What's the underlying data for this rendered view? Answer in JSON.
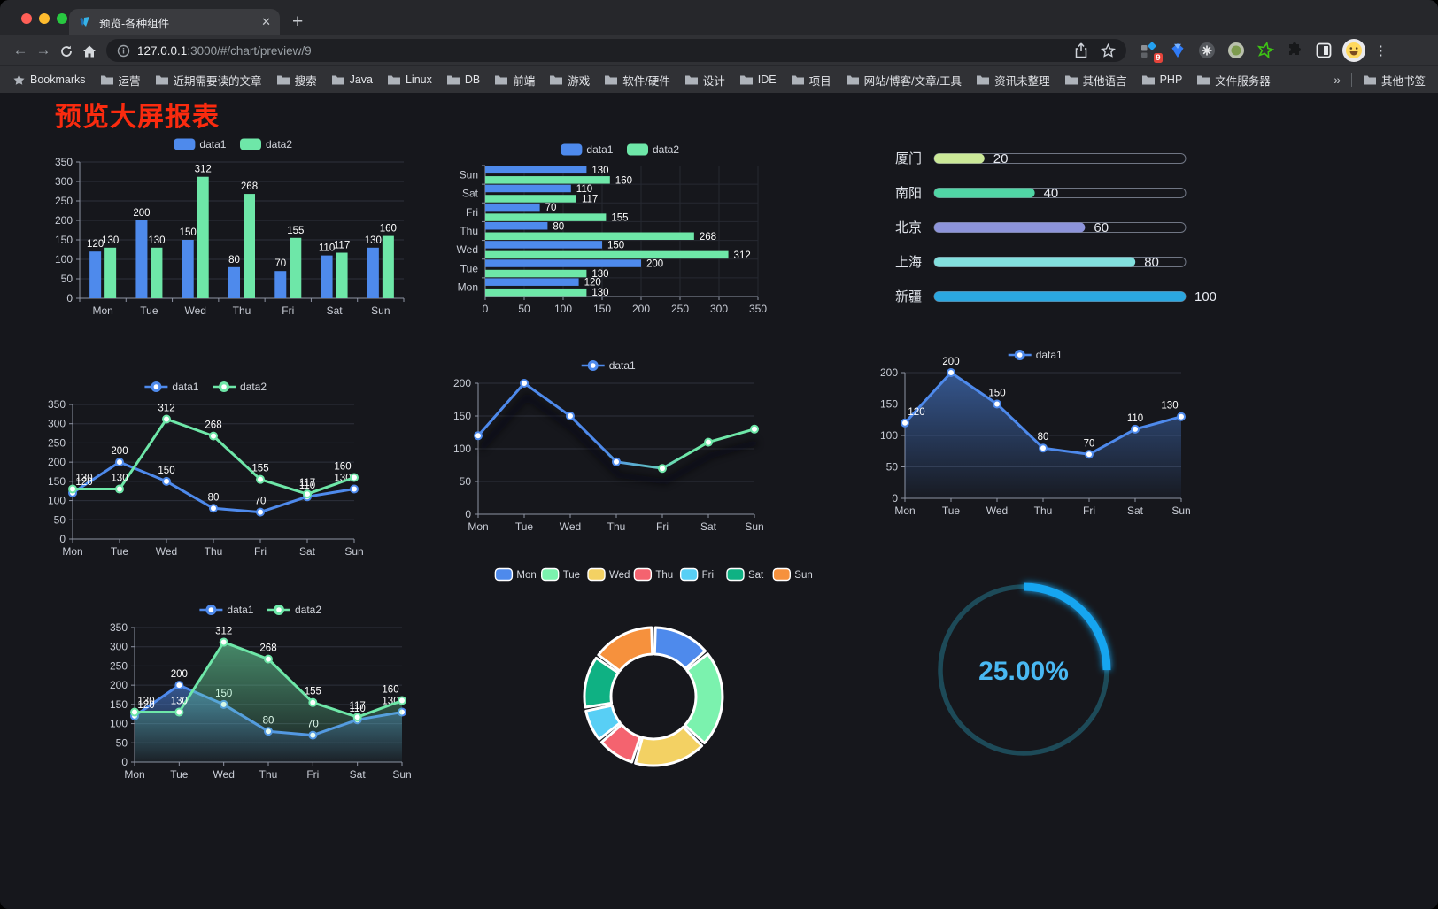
{
  "browser": {
    "tab": {
      "title": "预览-各种组件"
    },
    "new_tab_label": "+",
    "close_label": "✕",
    "url": {
      "host": "127.0.0.1",
      "rest": ":3000/#/chart/preview/9"
    },
    "bookmarks_label": "Bookmarks",
    "bookmarks": [
      "运营",
      "近期需要读的文章",
      "搜索",
      "Java",
      "Linux",
      "DB",
      "前端",
      "游戏",
      "软件/硬件",
      "设计",
      "IDE",
      "项目",
      "网站/博客/文章/工具",
      "资讯未整理",
      "其他语言",
      "PHP",
      "文件服务器"
    ],
    "bookmarks_overflow": "»",
    "other_bookmarks": "其他书签",
    "extension_badge": "9"
  },
  "page": {
    "title": "预览大屏报表",
    "title_color": "#fa2b0f",
    "background": "#16171c"
  },
  "chart_data": [
    {
      "id": "grouped-bar-vertical",
      "type": "bar",
      "categories": [
        "Mon",
        "Tue",
        "Wed",
        "Thu",
        "Fri",
        "Sat",
        "Sun"
      ],
      "series": [
        {
          "name": "data1",
          "color": "#4e8aec",
          "values": [
            120,
            200,
            150,
            80,
            70,
            110,
            130
          ]
        },
        {
          "name": "data2",
          "color": "#6ee7a8",
          "values": [
            130,
            130,
            312,
            268,
            155,
            117,
            160
          ]
        }
      ],
      "ylim": [
        0,
        350
      ],
      "yticks": [
        0,
        50,
        100,
        150,
        200,
        250,
        300,
        350
      ],
      "legend_position": "top",
      "grid": true,
      "value_labels": true
    },
    {
      "id": "grouped-bar-horizontal",
      "type": "bar",
      "orientation": "horizontal",
      "categories": [
        "Sun",
        "Sat",
        "Fri",
        "Thu",
        "Wed",
        "Tue",
        "Mon"
      ],
      "series": [
        {
          "name": "data1",
          "color": "#4e8aec",
          "values": [
            130,
            110,
            70,
            80,
            150,
            200,
            120
          ]
        },
        {
          "name": "data2",
          "color": "#6ee7a8",
          "values": [
            160,
            117,
            155,
            268,
            312,
            130,
            130
          ]
        }
      ],
      "xlim": [
        0,
        350
      ],
      "xticks": [
        0,
        50,
        100,
        150,
        200,
        250,
        300,
        350
      ],
      "legend_position": "top",
      "value_labels": true
    },
    {
      "id": "city-progress",
      "type": "bar",
      "subtype": "progress",
      "items": [
        {
          "label": "厦门",
          "value": 20,
          "color": "#cbe998"
        },
        {
          "label": "南阳",
          "value": 40,
          "color": "#50d6a5"
        },
        {
          "label": "北京",
          "value": 60,
          "color": "#8d94da"
        },
        {
          "label": "上海",
          "value": 80,
          "color": "#83e0de"
        },
        {
          "label": "新疆",
          "value": 100,
          "color": "#2ba7e0"
        }
      ],
      "xlim": [
        0,
        100
      ],
      "xticks": [
        0,
        20,
        40,
        60,
        80,
        100
      ]
    },
    {
      "id": "line-multi",
      "type": "line",
      "categories": [
        "Mon",
        "Tue",
        "Wed",
        "Thu",
        "Fri",
        "Sat",
        "Sun"
      ],
      "series": [
        {
          "name": "data1",
          "color": "#4e8aec",
          "values": [
            120,
            200,
            150,
            80,
            70,
            110,
            130
          ]
        },
        {
          "name": "data2",
          "color": "#6ee7a8",
          "values": [
            130,
            130,
            312,
            268,
            155,
            117,
            160
          ]
        }
      ],
      "ylim": [
        0,
        350
      ],
      "yticks": [
        0,
        50,
        100,
        150,
        200,
        250,
        300,
        350
      ],
      "area": false,
      "value_labels": true,
      "legend_position": "top"
    },
    {
      "id": "line-gradient",
      "type": "line",
      "categories": [
        "Mon",
        "Tue",
        "Wed",
        "Thu",
        "Fri",
        "Sat",
        "Sun"
      ],
      "series": [
        {
          "name": "data1",
          "color": "#4e8aec",
          "values": [
            120,
            200,
            150,
            80,
            70,
            110,
            130
          ]
        }
      ],
      "gradient": [
        "#4e8aec",
        "#6ee7a8"
      ],
      "shadow": true,
      "ylim": [
        0,
        200
      ],
      "yticks": [
        0,
        50,
        100,
        150,
        200
      ],
      "area": false,
      "value_labels": false,
      "legend_position": "top"
    },
    {
      "id": "area-single",
      "type": "area",
      "categories": [
        "Mon",
        "Tue",
        "Wed",
        "Thu",
        "Fri",
        "Sat",
        "Sun"
      ],
      "series": [
        {
          "name": "data1",
          "color": "#4e8aec",
          "values": [
            120,
            200,
            150,
            80,
            70,
            110,
            130
          ]
        }
      ],
      "ylim": [
        0,
        200
      ],
      "yticks": [
        0,
        50,
        100,
        150,
        200
      ],
      "area": true,
      "value_labels": true,
      "legend_position": "top"
    },
    {
      "id": "area-multi",
      "type": "area",
      "categories": [
        "Mon",
        "Tue",
        "Wed",
        "Thu",
        "Fri",
        "Sat",
        "Sun"
      ],
      "series": [
        {
          "name": "data1",
          "color": "#4e8aec",
          "values": [
            120,
            200,
            150,
            80,
            70,
            110,
            130
          ]
        },
        {
          "name": "data2",
          "color": "#6ee7a8",
          "values": [
            130,
            130,
            312,
            268,
            155,
            117,
            160
          ]
        }
      ],
      "ylim": [
        0,
        350
      ],
      "yticks": [
        0,
        50,
        100,
        150,
        200,
        250,
        300,
        350
      ],
      "area": true,
      "value_labels": true,
      "legend_position": "top"
    },
    {
      "id": "week-donut",
      "type": "pie",
      "subtype": "donut",
      "categories": [
        "Mon",
        "Tue",
        "Wed",
        "Thu",
        "Fri",
        "Sat",
        "Sun"
      ],
      "values": [
        120,
        200,
        150,
        80,
        70,
        110,
        130
      ],
      "colors": [
        "#4e8aec",
        "#7bf2ae",
        "#f3d163",
        "#f4636f",
        "#58cff5",
        "#0fb183",
        "#f6913d"
      ],
      "legend_position": "top"
    },
    {
      "id": "ring-progress",
      "type": "gauge",
      "value_label": "25.00%",
      "percent": 25,
      "track_color": "#1d4a58",
      "arc_color": "#18a5f0",
      "text_color": "#49b8f2"
    }
  ]
}
